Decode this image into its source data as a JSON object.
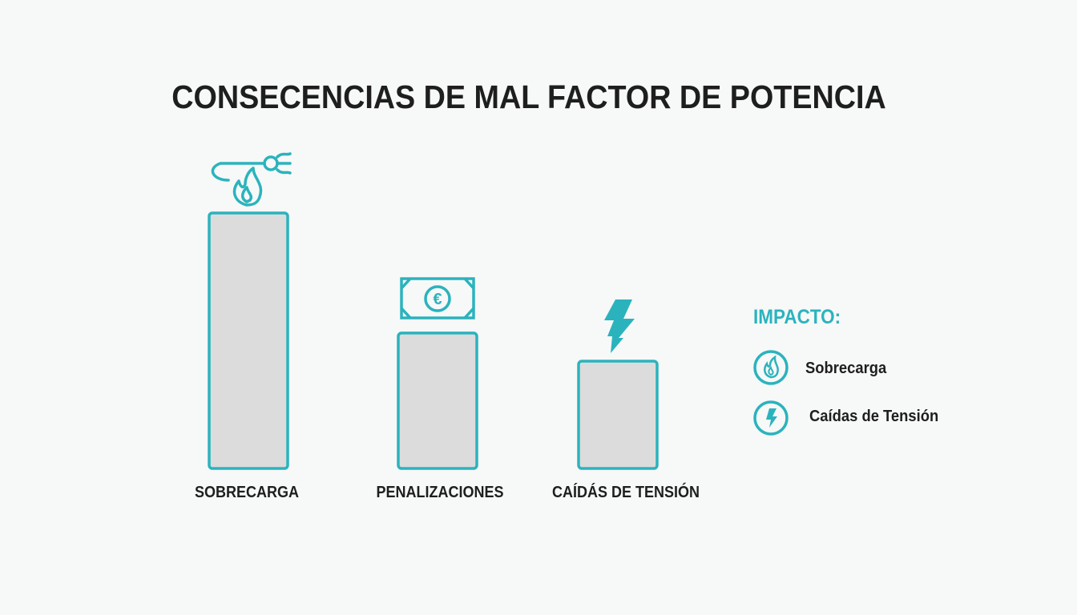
{
  "chart_data": {
    "type": "bar",
    "title": "CONSECENCIAS DE MAL FACTOR DE POTENCIA",
    "categories": [
      "SOBRECARGA",
      "PENALIZACIONES",
      "CAÍDÁS DE TENSIÓN"
    ],
    "values": [
      100,
      53,
      42
    ],
    "category_icons": [
      "plug-flame-icon",
      "euro-banknote-icon",
      "lightning-bolt-icon"
    ],
    "xlabel": "",
    "ylabel": "",
    "ylim": [
      0,
      100
    ],
    "grid": false,
    "legend": {
      "placement": "right",
      "title": "IMPACTO:",
      "items": [
        {
          "label": "Sobrecarga",
          "icon": "flame-circle-icon"
        },
        {
          "label": "Caídas de Tensión",
          "icon": "lightning-circle-icon"
        }
      ]
    },
    "colors": {
      "accent": "#2bb3bd",
      "bar_fill": "#dcdcdc",
      "text": "#1e1e1e"
    }
  }
}
